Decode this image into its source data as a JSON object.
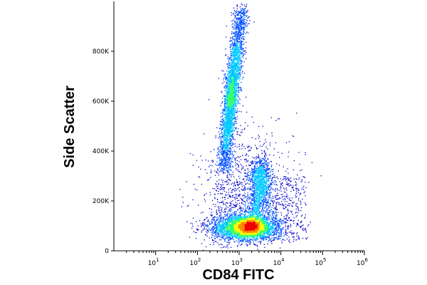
{
  "chart_data": {
    "type": "scatter",
    "title": "",
    "xlabel": "CD84 FITC",
    "ylabel": "Side Scatter",
    "x_scale": "log",
    "xlim": [
      1,
      1000000
    ],
    "ylim": [
      0,
      1000000
    ],
    "grid": false,
    "legend": "none",
    "x_ticks": [
      {
        "value": 10,
        "base": "10",
        "exp": "1"
      },
      {
        "value": 100,
        "base": "10",
        "exp": "2"
      },
      {
        "value": 1000,
        "base": "10",
        "exp": "3"
      },
      {
        "value": 10000,
        "base": "10",
        "exp": "4"
      },
      {
        "value": 100000,
        "base": "10",
        "exp": "5"
      },
      {
        "value": 1000000,
        "base": "10",
        "exp": "6"
      }
    ],
    "y_ticks": [
      {
        "value": 0,
        "label": "0"
      },
      {
        "value": 200000,
        "label": "200K"
      },
      {
        "value": 400000,
        "label": "400K"
      },
      {
        "value": 600000,
        "label": "600K"
      },
      {
        "value": 800000,
        "label": "800K"
      }
    ],
    "colormap": [
      "#0000cc",
      "#0050ff",
      "#00c8ff",
      "#33ff66",
      "#ffff00",
      "#ff8800",
      "#ee0000"
    ],
    "populations": [
      {
        "x_center": 600,
        "y_center": 620000,
        "density": "high",
        "shape": "tilted elongated band"
      },
      {
        "x_center": 3000,
        "y_center": 300000,
        "density": "medium",
        "shape": "oval"
      },
      {
        "x_center": 1800,
        "y_center": 100000,
        "density": "very high",
        "shape": "wide horizontal band"
      }
    ]
  }
}
